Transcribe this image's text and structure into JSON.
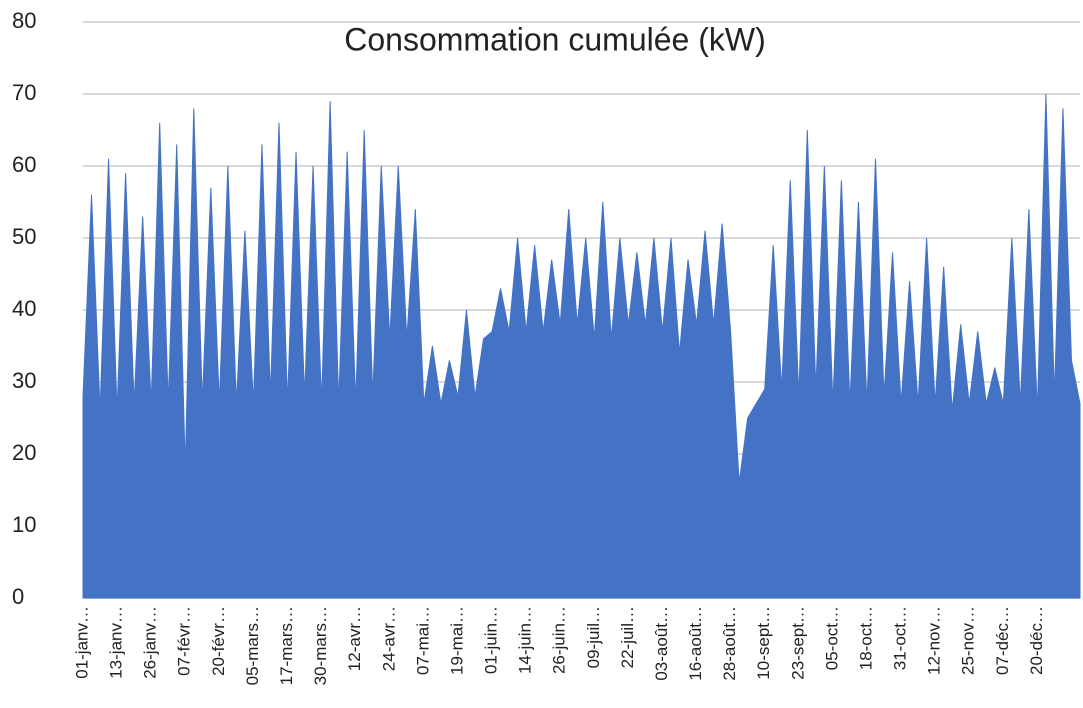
{
  "chart_data": {
    "type": "area",
    "title": "Consommation cumulée (kW)",
    "categories": [
      "01-janv…",
      null,
      null,
      null,
      "13-janv…",
      null,
      null,
      null,
      "26-janv…",
      null,
      null,
      null,
      "07-févr…",
      null,
      null,
      null,
      "20-févr…",
      null,
      null,
      null,
      "05-mars…",
      null,
      null,
      null,
      "17-mars…",
      null,
      null,
      null,
      "30-mars…",
      null,
      null,
      null,
      "12-avr…",
      null,
      null,
      null,
      "24-avr…",
      null,
      null,
      null,
      "07-mai…",
      null,
      null,
      null,
      "19-mai…",
      null,
      null,
      null,
      "01-juin…",
      null,
      null,
      null,
      "14-juin…",
      null,
      null,
      null,
      "26-juin…",
      null,
      null,
      null,
      "09-juil…",
      null,
      null,
      null,
      "22-juil…",
      null,
      null,
      null,
      "03-août…",
      null,
      null,
      null,
      "16-août…",
      null,
      null,
      null,
      "28-août…",
      null,
      null,
      null,
      "10-sept…",
      null,
      null,
      null,
      "23-sept…",
      null,
      null,
      null,
      "05-oct…",
      null,
      null,
      null,
      "18-oct…",
      null,
      null,
      null,
      "31-oct…",
      null,
      null,
      null,
      "12-nov…",
      null,
      null,
      null,
      "25-nov…",
      null,
      null,
      null,
      "07-déc…",
      null,
      null,
      null,
      "20-déc…",
      null,
      null,
      null,
      null,
      null
    ],
    "series": [
      {
        "name": "Consommation cumulée (kW)",
        "color": "#4472c4",
        "values": [
          28,
          56,
          26,
          61,
          26,
          59,
          27,
          53,
          27,
          66,
          27,
          63,
          18,
          68,
          27,
          57,
          27,
          60,
          27,
          51,
          27,
          63,
          28,
          66,
          27,
          62,
          28,
          60,
          27,
          69,
          27,
          62,
          27,
          65,
          28,
          60,
          36,
          60,
          36,
          54,
          27,
          35,
          27,
          33,
          28,
          40,
          28,
          36,
          37,
          43,
          37,
          50,
          37,
          49,
          37,
          47,
          38,
          54,
          38,
          50,
          36,
          55,
          36,
          50,
          38,
          48,
          38,
          50,
          37,
          50,
          34,
          47,
          38,
          51,
          38,
          52,
          37,
          16,
          25,
          27,
          29,
          49,
          29,
          58,
          28,
          65,
          29,
          60,
          27,
          58,
          27,
          55,
          27,
          61,
          28,
          48,
          27,
          44,
          27,
          50,
          27,
          46,
          26,
          38,
          27,
          37,
          27,
          32,
          27,
          50,
          27,
          54,
          26,
          70,
          28,
          68,
          33,
          27
        ]
      }
    ],
    "ylim": [
      0,
      80
    ],
    "yticks": [
      0,
      10,
      20,
      30,
      40,
      50,
      60,
      70,
      80
    ],
    "grid": true
  }
}
